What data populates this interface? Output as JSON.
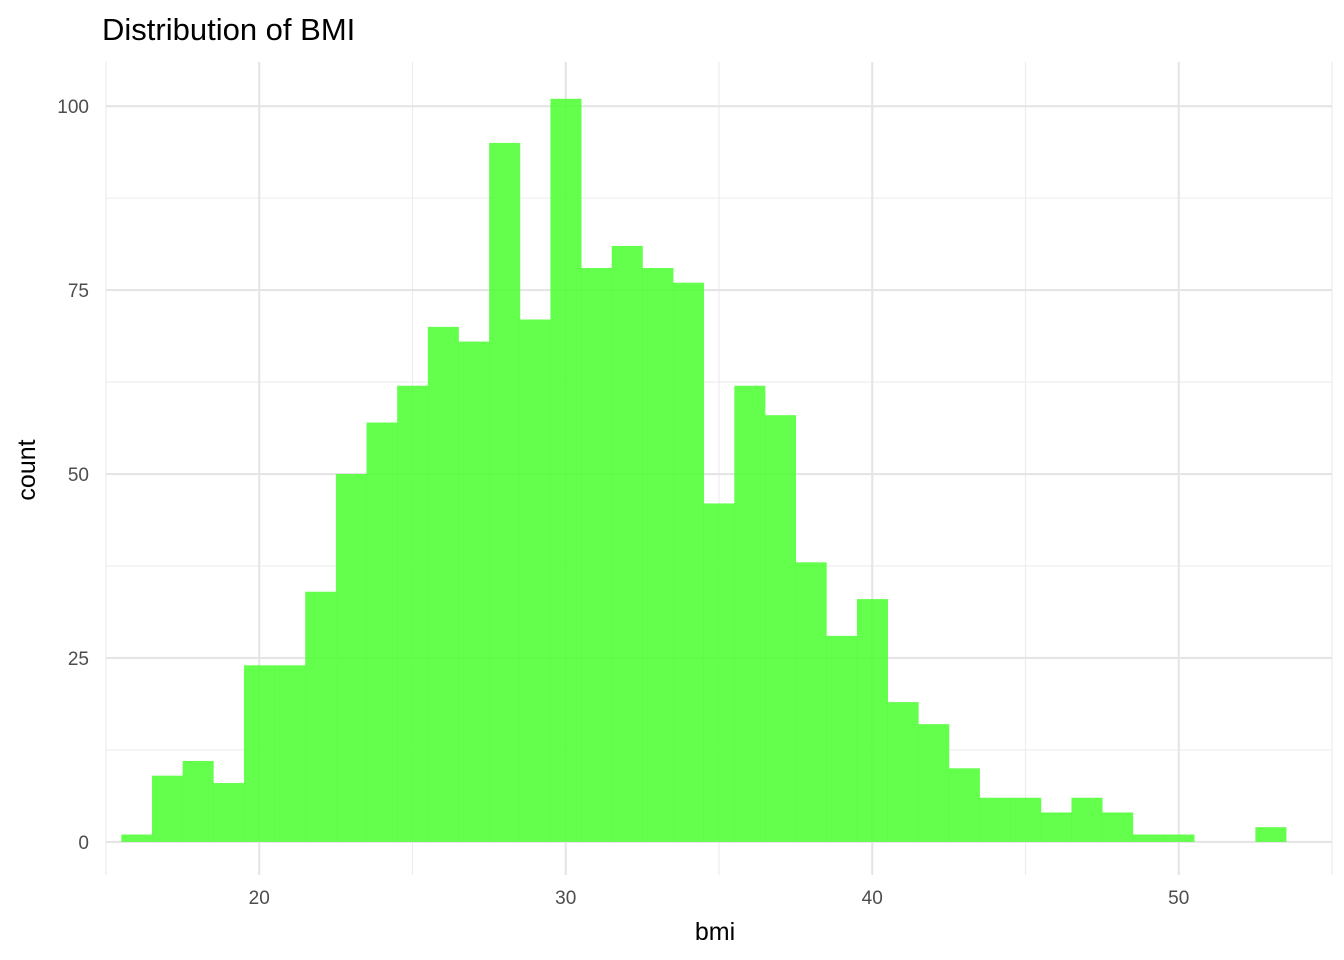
{
  "chart_data": {
    "type": "bar",
    "title": "Distribution of BMI",
    "xlabel": "bmi",
    "ylabel": "count",
    "bar_color": "#4dff33",
    "bar_opacity": 0.88,
    "x_ticks": [
      20,
      30,
      40,
      50
    ],
    "y_ticks": [
      0,
      25,
      50,
      75,
      100
    ],
    "xlim": [
      15.0,
      55.0
    ],
    "ylim": [
      -4.5,
      106.0
    ],
    "grid": true,
    "bin_width": 1.0,
    "bins": [
      {
        "x": 16.0,
        "count": 1
      },
      {
        "x": 17.0,
        "count": 9
      },
      {
        "x": 18.0,
        "count": 11
      },
      {
        "x": 19.0,
        "count": 8
      },
      {
        "x": 20.0,
        "count": 24
      },
      {
        "x": 21.0,
        "count": 24
      },
      {
        "x": 22.0,
        "count": 34
      },
      {
        "x": 23.0,
        "count": 50
      },
      {
        "x": 24.0,
        "count": 57
      },
      {
        "x": 25.0,
        "count": 62
      },
      {
        "x": 26.0,
        "count": 70
      },
      {
        "x": 27.0,
        "count": 68
      },
      {
        "x": 28.0,
        "count": 95
      },
      {
        "x": 29.0,
        "count": 71
      },
      {
        "x": 30.0,
        "count": 101
      },
      {
        "x": 31.0,
        "count": 78
      },
      {
        "x": 32.0,
        "count": 81
      },
      {
        "x": 33.0,
        "count": 78
      },
      {
        "x": 34.0,
        "count": 76
      },
      {
        "x": 35.0,
        "count": 46
      },
      {
        "x": 36.0,
        "count": 62
      },
      {
        "x": 37.0,
        "count": 58
      },
      {
        "x": 38.0,
        "count": 38
      },
      {
        "x": 39.0,
        "count": 28
      },
      {
        "x": 40.0,
        "count": 33
      },
      {
        "x": 41.0,
        "count": 19
      },
      {
        "x": 42.0,
        "count": 16
      },
      {
        "x": 43.0,
        "count": 10
      },
      {
        "x": 44.0,
        "count": 6
      },
      {
        "x": 45.0,
        "count": 6
      },
      {
        "x": 46.0,
        "count": 4
      },
      {
        "x": 47.0,
        "count": 6
      },
      {
        "x": 48.0,
        "count": 4
      },
      {
        "x": 49.0,
        "count": 1
      },
      {
        "x": 50.0,
        "count": 1
      },
      {
        "x": 51.0,
        "count": 0
      },
      {
        "x": 52.0,
        "count": 0
      },
      {
        "x": 53.0,
        "count": 2
      }
    ]
  }
}
